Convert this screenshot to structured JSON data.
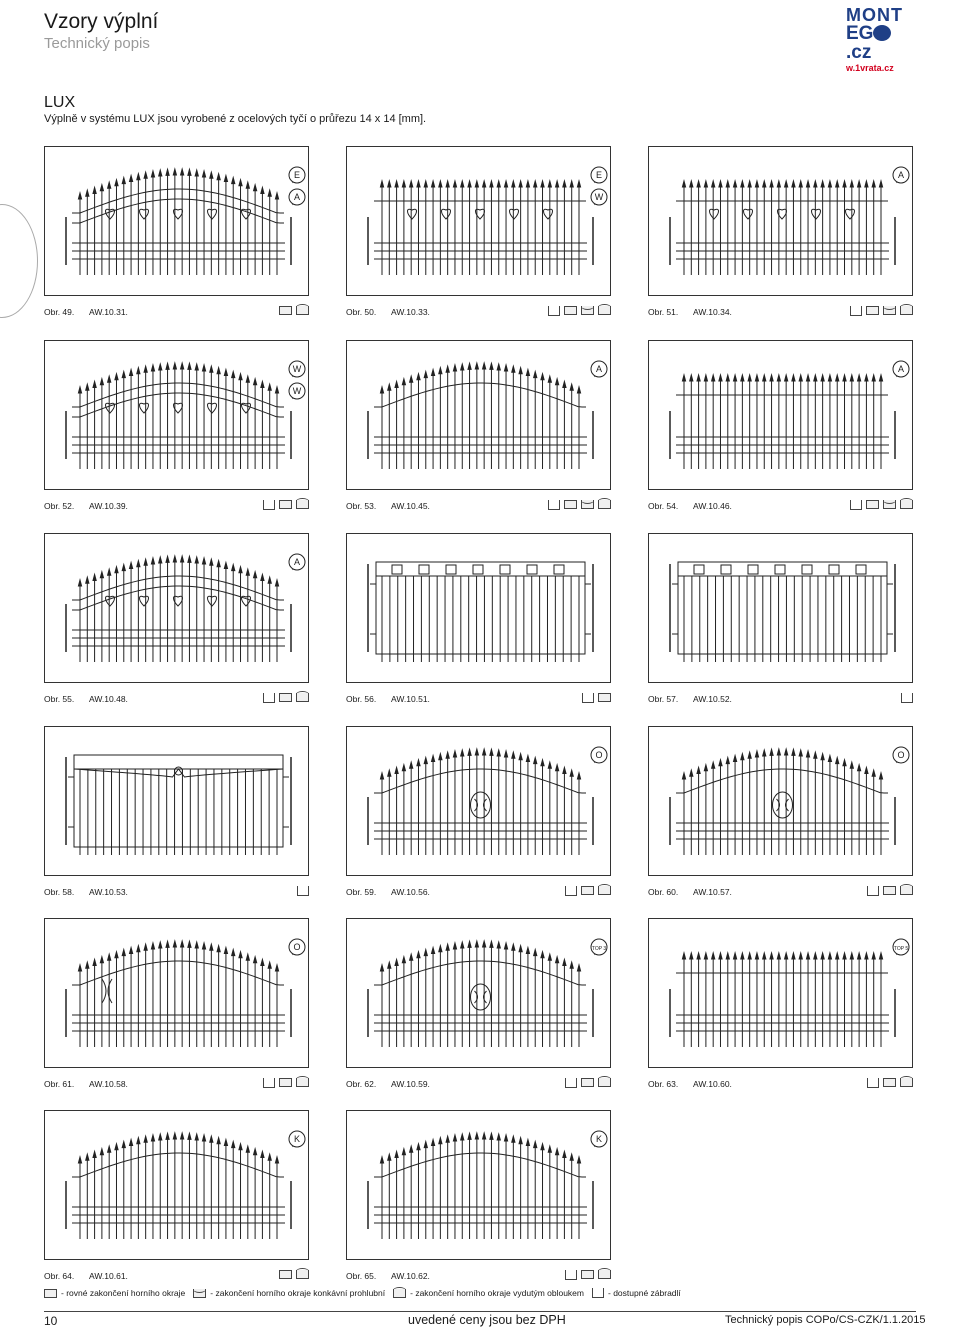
{
  "header": {
    "title": "Vzory výplní",
    "subtitle": "Technický popis"
  },
  "logo": {
    "line1": "MONT",
    "line2a": "EG",
    "line2b": ".cz",
    "line3": "w.1vrata.cz"
  },
  "section": {
    "title": "LUX",
    "description": "Výplně v systému LUX jsou vyrobené z ocelových tyčí o průřezu 14 x 14 [mm]."
  },
  "panels": [
    {
      "obr": "Obr. 49.",
      "code": "AW.10.31.",
      "labels": [
        "E",
        "A"
      ],
      "icons": [
        "flat",
        "arc"
      ]
    },
    {
      "obr": "Obr. 50.",
      "code": "AW.10.33.",
      "labels": [
        "E",
        "W"
      ],
      "icons": [
        "rail",
        "flat",
        "concave",
        "arc"
      ]
    },
    {
      "obr": "Obr. 51.",
      "code": "AW.10.34.",
      "labels": [
        "A"
      ],
      "icons": [
        "rail",
        "flat",
        "concave",
        "arc"
      ]
    },
    {
      "obr": "Obr. 52.",
      "code": "AW.10.39.",
      "labels": [
        "W",
        "W"
      ],
      "icons": [
        "rail",
        "flat",
        "arc"
      ]
    },
    {
      "obr": "Obr. 53.",
      "code": "AW.10.45.",
      "labels": [
        "A"
      ],
      "icons": [
        "rail",
        "flat",
        "concave",
        "arc"
      ]
    },
    {
      "obr": "Obr. 54.",
      "code": "AW.10.46.",
      "labels": [
        "A"
      ],
      "icons": [
        "rail",
        "flat",
        "concave",
        "arc"
      ]
    },
    {
      "obr": "Obr. 55.",
      "code": "AW.10.48.",
      "labels": [
        "A"
      ],
      "icons": [
        "rail",
        "flat",
        "arc"
      ]
    },
    {
      "obr": "Obr. 56.",
      "code": "AW.10.51.",
      "labels": [],
      "icons": [
        "rail",
        "flat"
      ]
    },
    {
      "obr": "Obr. 57.",
      "code": "AW.10.52.",
      "labels": [],
      "icons": [
        "rail"
      ]
    },
    {
      "obr": "Obr. 58.",
      "code": "AW.10.53.",
      "labels": [],
      "icons": [
        "rail"
      ]
    },
    {
      "obr": "Obr. 59.",
      "code": "AW.10.56.",
      "labels": [
        "O"
      ],
      "icons": [
        "rail",
        "flat",
        "arc"
      ]
    },
    {
      "obr": "Obr. 60.",
      "code": "AW.10.57.",
      "labels": [
        "O"
      ],
      "icons": [
        "rail",
        "flat",
        "arc"
      ]
    },
    {
      "obr": "Obr. 61.",
      "code": "AW.10.58.",
      "labels": [
        "O"
      ],
      "icons": [
        "rail",
        "flat",
        "arc"
      ]
    },
    {
      "obr": "Obr. 62.",
      "code": "AW.10.59.",
      "labels": [
        "TOP 3"
      ],
      "icons": [
        "rail",
        "flat",
        "arc"
      ]
    },
    {
      "obr": "Obr. 63.",
      "code": "AW.10.60.",
      "labels": [
        "TOP 5"
      ],
      "icons": [
        "rail",
        "flat",
        "arc"
      ]
    },
    {
      "obr": "Obr. 64.",
      "code": "AW.10.61.",
      "labels": [
        "K"
      ],
      "icons": [
        "flat",
        "arc"
      ]
    },
    {
      "obr": "Obr. 65.",
      "code": "AW.10.62.",
      "labels": [
        "K"
      ],
      "icons": [
        "rail",
        "flat",
        "arc"
      ]
    }
  ],
  "legend": [
    {
      "icon": "flat",
      "text": "- rovné zakončení horního okraje"
    },
    {
      "icon": "concave",
      "text": "- zakončení horního okraje konkávní prohlubní"
    },
    {
      "icon": "arc",
      "text": "- zakončení horního okraje vydutým obloukem"
    },
    {
      "icon": "rail",
      "text": "- dostupné zábradlí"
    }
  ],
  "footer": {
    "page": "10",
    "center": "uvedené ceny jsou bez DPH",
    "right": "Technický popis COPo/CS-CZK/1.1.2015"
  }
}
